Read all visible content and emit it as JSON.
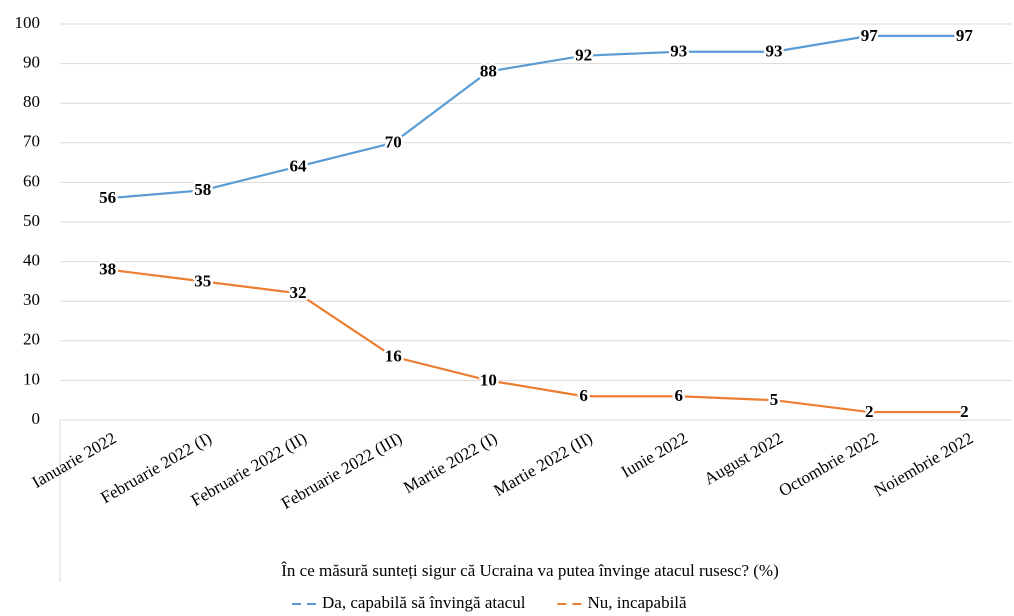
{
  "chart_data": {
    "type": "line",
    "x_label": "În ce măsură sunteți sigur că Ucraina va putea învinge atacul rusesc? (%)",
    "categories": [
      "Ianuarie 2022",
      "Februarie 2022 (I)",
      "Februarie 2022 (II)",
      "Februarie 2022 (III)",
      "Martie 2022 (I)",
      "Martie 2022 (II)",
      "Iunie 2022",
      "August 2022",
      "Octombrie 2022",
      "Noiembrie 2022"
    ],
    "series": [
      {
        "name": "Da, capabilă să învingă atacul",
        "color": "#5b9bd5",
        "label_color": "#4472c4",
        "values": [
          56,
          58,
          64,
          70,
          88,
          92,
          93,
          93,
          97,
          97
        ]
      },
      {
        "name": "Nu, incapabilă",
        "color": "#ed7d31",
        "label_color": "#ed7d31",
        "values": [
          38,
          35,
          32,
          16,
          10,
          6,
          6,
          5,
          2,
          2
        ]
      }
    ],
    "ylim": [
      0,
      100
    ],
    "yticks": [
      0,
      10,
      20,
      30,
      40,
      50,
      60,
      70,
      80,
      90,
      100
    ],
    "grid": true,
    "legend": "bottom",
    "dashed_legend": true
  }
}
